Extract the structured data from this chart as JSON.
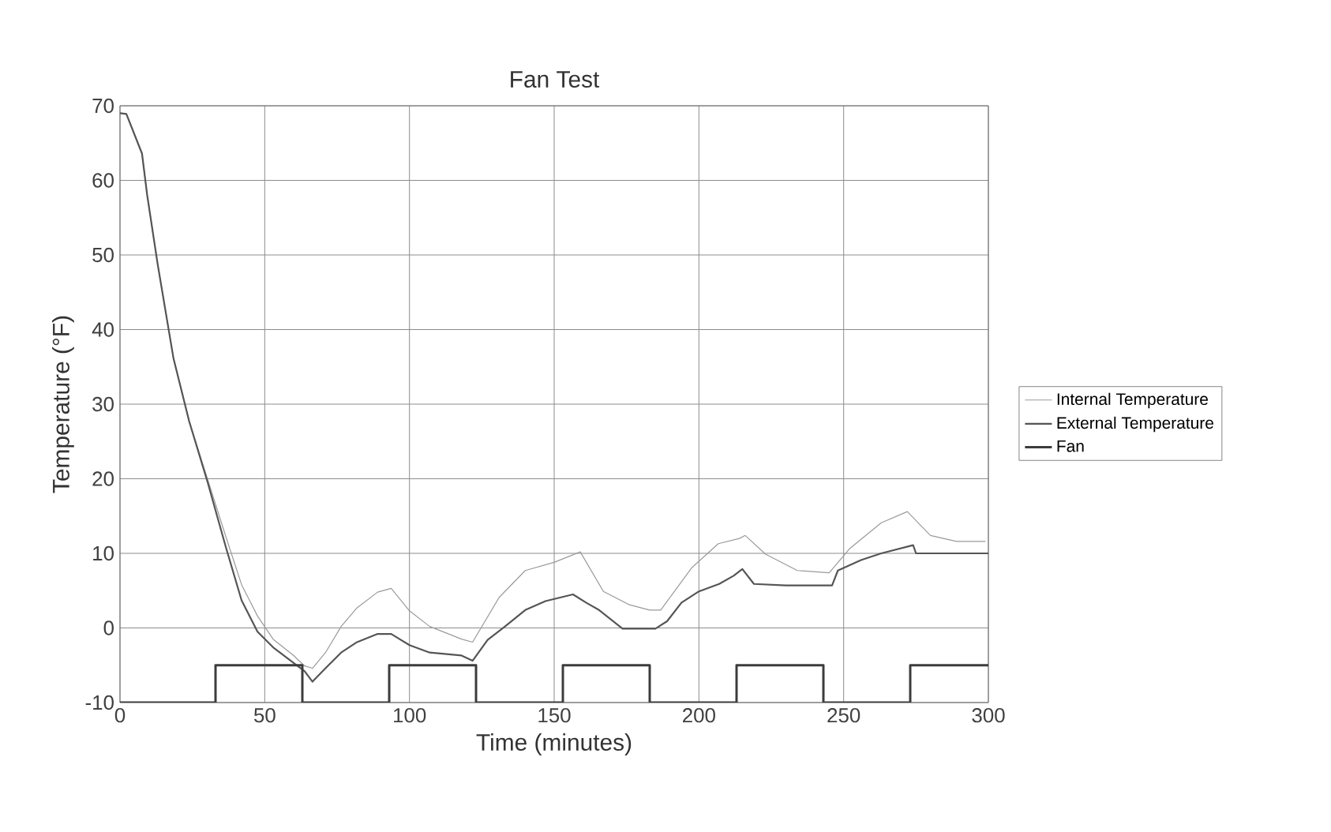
{
  "chart_data": {
    "type": "line",
    "title": "Fan Test",
    "xlabel": "Time (minutes)",
    "ylabel": "Temperature (°F)",
    "xlim": [
      0,
      300
    ],
    "xticks": [
      0,
      50,
      100,
      150,
      200,
      250,
      300
    ],
    "ylim": [
      -10,
      70
    ],
    "yticks": [
      -10,
      0,
      10,
      20,
      30,
      40,
      50,
      60,
      70
    ],
    "grid": true,
    "legend": "right",
    "marker": "none",
    "series": [
      {
        "name": "Internal Temperature",
        "color": "#9a9a9a",
        "x": [
          0,
          2.2,
          7.6,
          9.4,
          13,
          18.5,
          23.9,
          30.3,
          36.6,
          42,
          47.5,
          52.9,
          60,
          63.8,
          66.5,
          71,
          76.4,
          81.9,
          89,
          93.7,
          100,
          107,
          118,
          121.8,
          131,
          140,
          150,
          159,
          167,
          176,
          183,
          186.8,
          197.6,
          206.7,
          214,
          216,
          223,
          234,
          245,
          252,
          263,
          272,
          280,
          289,
          299
        ],
        "values": [
          69,
          68.9,
          63.6,
          58,
          48.8,
          36.1,
          27.7,
          19.9,
          12.2,
          5.8,
          1.6,
          -1.5,
          -3.7,
          -5.1,
          -5.4,
          -3.3,
          0.2,
          2.7,
          4.8,
          5.3,
          2.3,
          0.2,
          -1.5,
          -1.9,
          4.1,
          7.7,
          8.8,
          10.2,
          4.9,
          3.1,
          2.4,
          2.4,
          8.1,
          11.3,
          12,
          12.4,
          9.9,
          7.7,
          7.4,
          10.6,
          14.1,
          15.6,
          12.4,
          11.6,
          11.6
        ]
      },
      {
        "name": "External Temperature",
        "color": "#555555",
        "x": [
          0,
          2.2,
          7.6,
          9.4,
          13,
          18.5,
          23.9,
          30.3,
          36.6,
          42,
          47.5,
          52.9,
          60,
          63.8,
          66.5,
          71,
          76.4,
          81.9,
          89,
          93.7,
          100,
          107,
          118,
          121.8,
          127,
          133,
          140,
          147,
          156.5,
          161,
          165.5,
          173.6,
          185,
          189,
          194,
          200,
          207,
          212,
          215,
          219,
          230,
          246,
          248,
          256,
          263,
          274,
          275,
          300
        ],
        "values": [
          69,
          68.9,
          63.6,
          58,
          48.8,
          36.1,
          27.7,
          19.5,
          10.8,
          3.7,
          -0.5,
          -2.6,
          -4.7,
          -5.8,
          -7.2,
          -5.4,
          -3.3,
          -1.9,
          -0.8,
          -0.8,
          -2.3,
          -3.3,
          -3.7,
          -4.4,
          -1.6,
          0.2,
          2.4,
          3.6,
          4.5,
          3.4,
          2.4,
          -0.1,
          -0.1,
          0.9,
          3.4,
          4.9,
          5.9,
          7,
          7.9,
          5.9,
          5.7,
          5.7,
          7.7,
          9.1,
          10,
          11.1,
          10,
          10
        ]
      },
      {
        "name": "Fan",
        "type": "step",
        "color": "#3c3c3c",
        "x": [
          0,
          33,
          63,
          93,
          123,
          153,
          183,
          213,
          243,
          273,
          300
        ],
        "values": [
          -10,
          -5,
          -10,
          -5,
          -10,
          -5,
          -10,
          -5,
          -10,
          -5,
          -5
        ]
      }
    ]
  }
}
